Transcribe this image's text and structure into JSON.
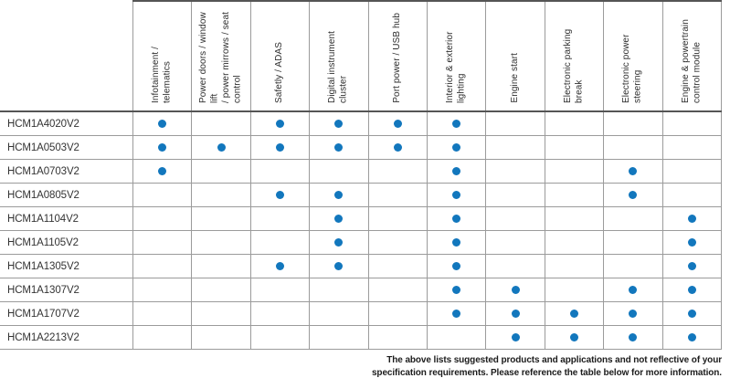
{
  "table": {
    "columns": [
      "Infotainment / telematics",
      "Power doors / window lift\n/ power mirrows / seat\ncontrol",
      "Safetly / ADAS",
      "Digital instrument cluster",
      "Port power / USB hub",
      "Interior & exterior lighting",
      "Engine start",
      "Electronic parking break",
      "Electronic power steering",
      "Engine & powertrain\ncontrol module"
    ],
    "rows": [
      {
        "part": "HCM1A4020V2",
        "dots": [
          1,
          0,
          1,
          1,
          1,
          1,
          0,
          0,
          0,
          0
        ]
      },
      {
        "part": "HCM1A0503V2",
        "dots": [
          1,
          1,
          1,
          1,
          1,
          1,
          0,
          0,
          0,
          0
        ]
      },
      {
        "part": "HCM1A0703V2",
        "dots": [
          1,
          0,
          0,
          0,
          0,
          1,
          0,
          0,
          1,
          0
        ]
      },
      {
        "part": "HCM1A0805V2",
        "dots": [
          0,
          0,
          1,
          1,
          0,
          1,
          0,
          0,
          1,
          0
        ]
      },
      {
        "part": "HCM1A1104V2",
        "dots": [
          0,
          0,
          0,
          1,
          0,
          1,
          0,
          0,
          0,
          1
        ]
      },
      {
        "part": "HCM1A1105V2",
        "dots": [
          0,
          0,
          0,
          1,
          0,
          1,
          0,
          0,
          0,
          1
        ]
      },
      {
        "part": "HCM1A1305V2",
        "dots": [
          0,
          0,
          1,
          1,
          0,
          1,
          0,
          0,
          0,
          1
        ]
      },
      {
        "part": "HCM1A1307V2",
        "dots": [
          0,
          0,
          0,
          0,
          0,
          1,
          1,
          0,
          1,
          1
        ]
      },
      {
        "part": "HCM1A1707V2",
        "dots": [
          0,
          0,
          0,
          0,
          0,
          1,
          1,
          1,
          1,
          1
        ]
      },
      {
        "part": "HCM1A2213V2",
        "dots": [
          0,
          0,
          0,
          0,
          0,
          0,
          1,
          1,
          1,
          1
        ]
      }
    ]
  },
  "footnote": {
    "line1": "The above lists suggested products and applications and not reflective of your",
    "line2": "specification requirements. Please reference the table below for more information."
  },
  "colors": {
    "dot": "#1277bd",
    "grid": "#9b9b9b",
    "header_rule": "#555555"
  }
}
